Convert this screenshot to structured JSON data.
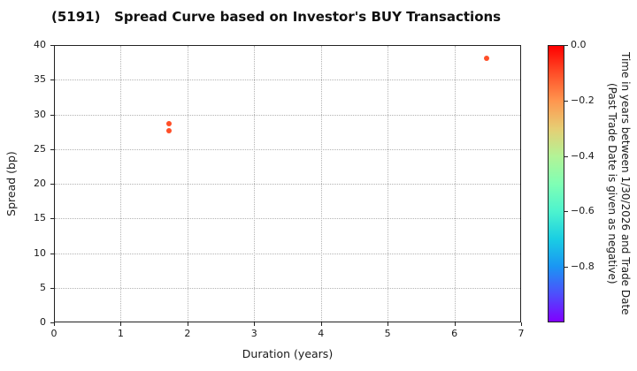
{
  "chart_data": {
    "type": "scatter",
    "title": "(5191)   Spread Curve based on Investor's BUY Transactions",
    "xlabel": "Duration (years)",
    "ylabel": "Spread (bp)",
    "xlim": [
      0,
      7
    ],
    "ylim": [
      0,
      40
    ],
    "grid": "dotted",
    "x_tick_values": [
      0,
      1,
      2,
      3,
      4,
      5,
      6,
      7
    ],
    "x_tick_labels": [
      "0",
      "1",
      "2",
      "3",
      "4",
      "5",
      "6",
      "7"
    ],
    "y_tick_values": [
      0,
      5,
      10,
      15,
      20,
      25,
      30,
      35,
      40
    ],
    "y_tick_labels": [
      "0",
      "5",
      "10",
      "15",
      "20",
      "25",
      "30",
      "35",
      "40"
    ],
    "points": [
      {
        "x": 1.72,
        "y": 28.6,
        "time": -0.1
      },
      {
        "x": 1.72,
        "y": 27.7,
        "time": -0.1
      },
      {
        "x": 6.48,
        "y": 38.1,
        "time": -0.1
      }
    ],
    "marker_color": "#f8502c",
    "colorbar": {
      "label_line1": "Time in years between 1/30/2026 and Trade Date",
      "label_line2": "(Past Trade Date is given as negative)",
      "range": [
        0.0,
        -1.0
      ],
      "tick_values": [
        0.0,
        -0.2,
        -0.4,
        -0.6,
        -0.8
      ],
      "tick_labels": [
        "0.0",
        "−0.2",
        "−0.4",
        "−0.6",
        "−0.8"
      ],
      "colormap": "rainbow",
      "colormap_stops_top_to_bottom": [
        "#ff0000",
        "#ff4f28",
        "#ff964f",
        "#e6ce74",
        "#b3f396",
        "#80ffb4",
        "#4df3ce",
        "#1acee3",
        "#1a96f3",
        "#4d4ffc",
        "#8000ff"
      ]
    }
  }
}
